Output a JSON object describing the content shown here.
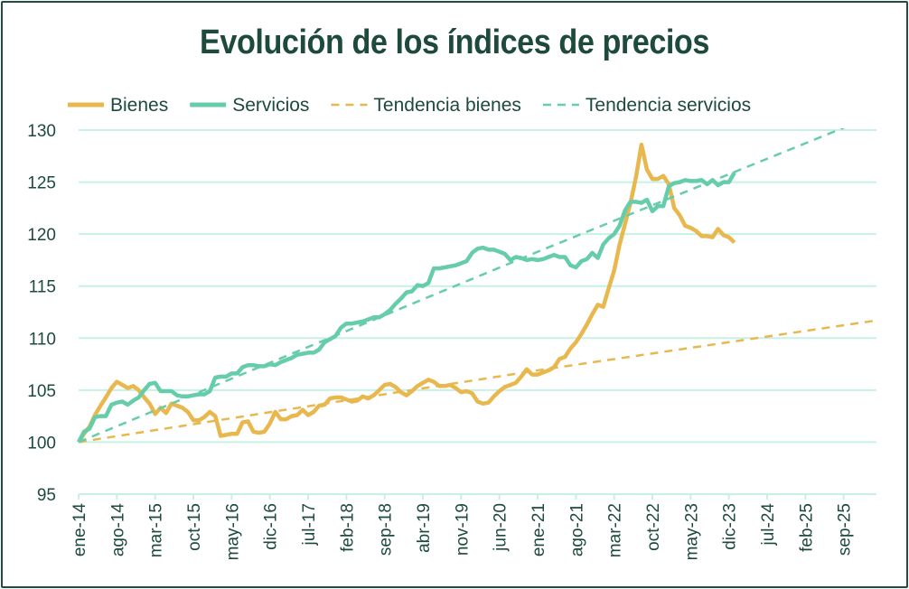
{
  "chart_data": {
    "type": "line",
    "title": "Evolución de los índices de precios",
    "xlabel": "",
    "ylabel": "",
    "ylim": [
      95,
      130
    ],
    "yticks": [
      95,
      100,
      105,
      110,
      115,
      120,
      125,
      130
    ],
    "x_unit": "months since ene-14",
    "xlim": [
      0,
      146
    ],
    "xtick_months": [
      0,
      7,
      14,
      21,
      28,
      35,
      42,
      49,
      56,
      63,
      70,
      77,
      84,
      91,
      98,
      105,
      112,
      119,
      126,
      133,
      140
    ],
    "xtick_labels": [
      "ene-14",
      "ago-14",
      "mar-15",
      "oct-15",
      "may-16",
      "dic-16",
      "jul-17",
      "feb-18",
      "sep-18",
      "abr-19",
      "nov-19",
      "jun-20",
      "ene-21",
      "ago-21",
      "mar-22",
      "oct-22",
      "may-23",
      "dic-23",
      "jul-24",
      "feb-25",
      "sep-25"
    ],
    "grid": true,
    "legend_position": "top",
    "series": [
      {
        "name": "Bienes",
        "color": "#e8b84f",
        "style": "solid",
        "values": [
          100,
          100.8,
          101.5,
          102.6,
          103.5,
          104.3,
          105.2,
          105.8,
          105.5,
          105.2,
          105.4,
          105,
          104.3,
          103.7,
          102.7,
          103.3,
          102.8,
          103.7,
          103.5,
          103.3,
          102.9,
          102.1,
          102.1,
          102.4,
          102.9,
          102.5,
          100.6,
          100.7,
          100.8,
          100.8,
          101.9,
          102,
          101,
          100.9,
          101,
          101.8,
          102.9,
          102.2,
          102.2,
          102.5,
          102.6,
          103.1,
          102.6,
          102.9,
          103.5,
          103.6,
          104.2,
          104.3,
          104.3,
          104.1,
          103.9,
          104,
          104.4,
          104.2,
          104.5,
          105,
          105.5,
          105.6,
          105.3,
          104.8,
          104.5,
          104.9,
          105.4,
          105.7,
          106,
          105.8,
          105.4,
          105.4,
          105.5,
          105.2,
          104.8,
          104.9,
          104.7,
          103.9,
          103.7,
          103.8,
          104.4,
          104.9,
          105.3,
          105.5,
          105.7,
          106.3,
          107,
          106.5,
          106.5,
          106.7,
          106.9,
          107.2,
          108,
          108.2,
          109,
          109.6,
          110.4,
          111.3,
          112.3,
          113.2,
          113,
          114.8,
          116.5,
          119,
          121,
          123,
          125.5,
          128.6,
          126.2,
          125.3,
          125.3,
          125.6,
          124.8,
          122.5,
          121.8,
          120.8,
          120.6,
          120.3,
          119.8,
          119.8,
          119.7,
          120.5,
          119.9,
          119.7,
          119.2
        ]
      },
      {
        "name": "Servicios",
        "color": "#66cdaa",
        "style": "solid",
        "values": [
          100,
          101,
          101.3,
          102.4,
          102.5,
          102.5,
          103.6,
          103.8,
          103.9,
          103.6,
          104,
          104.3,
          105,
          105.6,
          105.7,
          104.9,
          104.9,
          104.9,
          104.5,
          104.4,
          104.4,
          104.5,
          104.6,
          104.6,
          104.9,
          106.2,
          106.3,
          106.3,
          106.6,
          106.6,
          107.2,
          107.4,
          107.4,
          107.3,
          107.3,
          107.5,
          107.4,
          107.7,
          107.9,
          108.1,
          108.4,
          108.5,
          108.6,
          108.6,
          108.9,
          109.6,
          109.9,
          110.2,
          111,
          111.4,
          111.4,
          111.5,
          111.6,
          111.8,
          112,
          112,
          112.3,
          112.7,
          113.3,
          113.8,
          114.4,
          114.5,
          115.1,
          115,
          115.3,
          116.7,
          116.7,
          116.8,
          116.9,
          117,
          117.2,
          117.4,
          118.2,
          118.6,
          118.7,
          118.5,
          118.5,
          118.3,
          118.1,
          117.5,
          117.8,
          117.7,
          117.5,
          117.6,
          117.5,
          117.6,
          117.8,
          118,
          117.8,
          117.8,
          117,
          116.8,
          117.4,
          117.6,
          118.2,
          117.7,
          119,
          119.6,
          120,
          120.8,
          122.3,
          123.1,
          123.1,
          123,
          123.3,
          122.2,
          122.7,
          122.7,
          124.6,
          124.9,
          125,
          125.2,
          125.1,
          125.1,
          125.2,
          124.8,
          125.2,
          124.7,
          125,
          125,
          125.9
        ]
      },
      {
        "name": "Tendencia bienes",
        "color": "#e8b84f",
        "style": "dashed",
        "points": [
          [
            0,
            100
          ],
          [
            84,
            106.9
          ],
          [
            146,
            111.7
          ]
        ]
      },
      {
        "name": "Tendencia servicios",
        "color": "#66cdaa",
        "style": "dashed",
        "points": [
          [
            0,
            100
          ],
          [
            84,
            118.3
          ],
          [
            146,
            131.5
          ]
        ]
      }
    ]
  }
}
